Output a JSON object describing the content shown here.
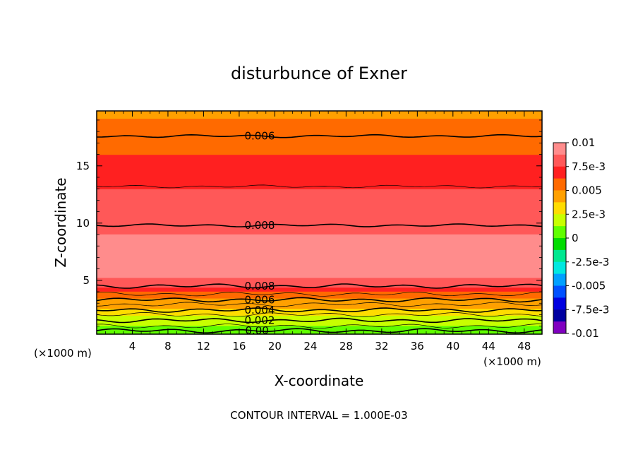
{
  "chart_data": {
    "type": "heatmap",
    "title": "disturbunce of Exner",
    "xlabel": "X-coordinate",
    "ylabel": "Z-coordinate",
    "x_unit_left": "(×1000 m)",
    "x_unit_right": "(×1000 m)",
    "xlim": [
      0,
      50
    ],
    "ylim": [
      0.3,
      19.8
    ],
    "x_ticks": [
      4,
      8,
      12,
      16,
      20,
      24,
      28,
      32,
      36,
      40,
      44,
      48
    ],
    "y_ticks": [
      5,
      10,
      15
    ],
    "contour_interval_text": "CONTOUR INTERVAL = 1.000E-03",
    "colorbar": {
      "min": -0.01,
      "max": 0.01,
      "labels": [
        "0.01",
        "7.5e-3",
        "0.005",
        "2.5e-3",
        "0",
        "-2.5e-3",
        "-0.005",
        "-7.5e-3",
        "-0.01"
      ],
      "label_values": [
        0.01,
        0.0075,
        0.005,
        0.0025,
        0,
        -0.0025,
        -0.005,
        -0.0075,
        -0.01
      ],
      "colors": [
        "#ff8c8c",
        "#ff5858",
        "#ff2020",
        "#ff6a00",
        "#ffa000",
        "#ffdc00",
        "#c8ff00",
        "#60ff00",
        "#00dc00",
        "#00e890",
        "#00e8e0",
        "#00a0ff",
        "#0050ff",
        "#0000e0",
        "#0000a0",
        "#8000c0"
      ]
    },
    "layer_values": {
      "z": [
        0.3,
        0.6,
        0.9,
        1.2,
        1.5,
        1.8,
        2.1,
        2.4,
        2.7,
        3.0,
        3.3,
        3.6,
        3.9,
        4.2,
        4.6,
        5.0,
        5.5,
        6.2,
        7.0,
        7.8,
        8.6,
        9.5,
        10.5,
        11.5,
        12.5,
        13.5,
        14.5,
        15.5,
        16.5,
        17.5,
        18.5,
        19.8
      ],
      "value": [
        0.0003,
        0.0008,
        0.0012,
        0.0016,
        0.002,
        0.0025,
        0.003,
        0.0035,
        0.004,
        0.0045,
        0.005,
        0.0055,
        0.006,
        0.0068,
        0.0078,
        0.0086,
        0.0091,
        0.0094,
        0.0095,
        0.0093,
        0.009,
        0.0086,
        0.0083,
        0.008,
        0.0076,
        0.0072,
        0.0068,
        0.0064,
        0.006,
        0.0056,
        0.0052,
        0.0048
      ]
    },
    "contour_labels": [
      {
        "text": "0.006",
        "x": 18.3,
        "z": 17.6
      },
      {
        "text": "0.008",
        "x": 18.3,
        "z": 9.8
      },
      {
        "text": "0.008",
        "x": 18.3,
        "z": 4.5
      },
      {
        "text": "0.006",
        "x": 18.3,
        "z": 3.3
      },
      {
        "text": "0.004",
        "x": 18.3,
        "z": 2.4
      },
      {
        "text": "0.002",
        "x": 18.3,
        "z": 1.5
      },
      {
        "text": "0.00",
        "x": 18.0,
        "z": 0.6
      }
    ],
    "contour_lines_z": [
      0.6,
      1.0,
      1.5,
      2.0,
      2.4,
      2.9,
      3.3,
      3.8,
      4.5,
      9.8,
      13.2,
      17.6
    ],
    "bold_contours_z": [
      0.6,
      1.5,
      2.4,
      3.3,
      4.5,
      9.8,
      17.6
    ],
    "max_core_region": {
      "z_low": 5.4,
      "z_high": 7.6
    }
  }
}
